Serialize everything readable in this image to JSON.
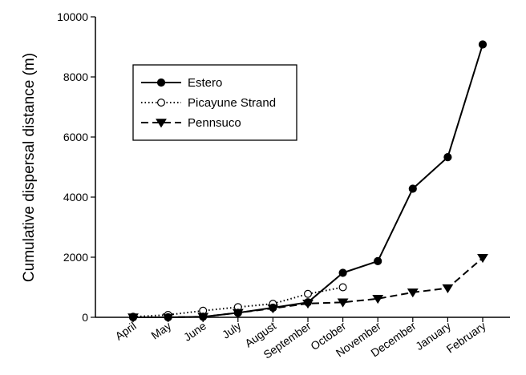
{
  "chart_data": {
    "type": "line",
    "title": "",
    "xlabel": "",
    "ylabel": "Cumulative dispersal distance (m)",
    "categories": [
      "April",
      "May",
      "June",
      "July",
      "August",
      "September",
      "October",
      "November",
      "December",
      "January",
      "February"
    ],
    "ylim": [
      0,
      10000
    ],
    "yticks": [
      0,
      2000,
      4000,
      6000,
      8000,
      10000
    ],
    "grid": false,
    "legend_position": "top-left",
    "series": [
      {
        "name": "Estero",
        "line_style": "solid",
        "marker": "filled-circle",
        "values": [
          0,
          0,
          20,
          150,
          320,
          500,
          1480,
          1870,
          4280,
          5330,
          9080
        ]
      },
      {
        "name": "Picayune Strand",
        "line_style": "dotted",
        "marker": "open-circle",
        "values": [
          20,
          80,
          220,
          340,
          450,
          780,
          1000,
          null,
          null,
          null,
          null
        ]
      },
      {
        "name": "Pennsuco",
        "line_style": "dashed",
        "marker": "filled-triangle-down",
        "values": [
          0,
          0,
          20,
          150,
          300,
          460,
          500,
          620,
          830,
          970,
          1980
        ]
      }
    ]
  }
}
